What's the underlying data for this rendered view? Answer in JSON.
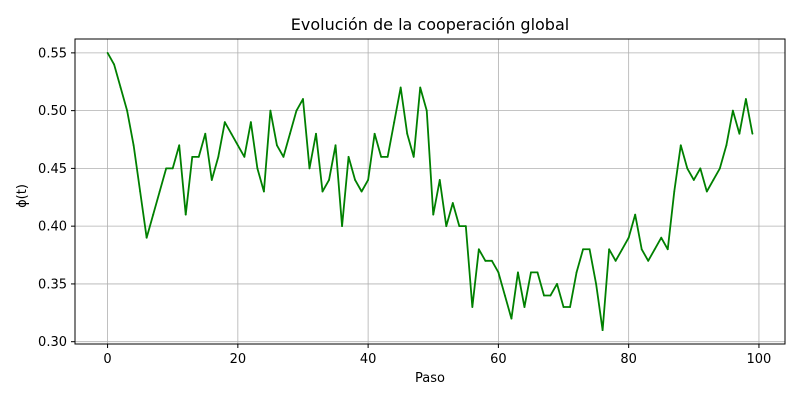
{
  "chart_data": {
    "type": "line",
    "title": "Evolución de la cooperación global",
    "xlabel": "Paso",
    "ylabel": "ϕ(t)",
    "xlim": [
      -5,
      104
    ],
    "ylim": [
      0.298,
      0.562
    ],
    "grid": true,
    "line_color": "#008000",
    "xticks": [
      0,
      20,
      40,
      60,
      80,
      100
    ],
    "xtick_labels": [
      "0",
      "20",
      "40",
      "60",
      "80",
      "100"
    ],
    "yticks": [
      0.3,
      0.35,
      0.4,
      0.45,
      0.5,
      0.55
    ],
    "ytick_labels": [
      "0.30",
      "0.35",
      "0.40",
      "0.45",
      "0.50",
      "0.55"
    ],
    "series": [
      {
        "x": [
          0,
          1,
          2,
          3,
          4,
          5,
          6,
          7,
          8,
          9,
          10,
          11,
          12,
          13,
          14,
          15,
          16,
          17,
          18,
          19,
          20,
          21,
          22,
          23,
          24,
          25,
          26,
          27,
          28,
          29,
          30,
          31,
          32,
          33,
          34,
          35,
          36,
          37,
          38,
          39,
          40,
          41,
          42,
          43,
          44,
          45,
          46,
          47,
          48,
          49,
          50,
          51,
          52,
          53,
          54,
          55,
          56,
          57,
          58,
          59,
          60,
          61,
          62,
          63,
          64,
          65,
          66,
          67,
          68,
          69,
          70,
          71,
          72,
          73,
          74,
          75,
          76,
          77,
          78,
          79,
          80,
          81,
          82,
          83,
          84,
          85,
          86,
          87,
          88,
          89,
          90,
          91,
          92,
          93,
          94,
          95,
          96,
          97,
          98,
          99
        ],
        "values": [
          0.55,
          0.54,
          0.52,
          0.5,
          0.47,
          0.43,
          0.39,
          0.41,
          0.43,
          0.45,
          0.45,
          0.47,
          0.41,
          0.46,
          0.46,
          0.48,
          0.44,
          0.46,
          0.49,
          0.48,
          0.47,
          0.46,
          0.49,
          0.45,
          0.43,
          0.5,
          0.47,
          0.46,
          0.48,
          0.5,
          0.51,
          0.45,
          0.48,
          0.43,
          0.44,
          0.47,
          0.4,
          0.46,
          0.44,
          0.43,
          0.44,
          0.48,
          0.46,
          0.46,
          0.49,
          0.52,
          0.48,
          0.46,
          0.52,
          0.5,
          0.41,
          0.44,
          0.4,
          0.42,
          0.4,
          0.4,
          0.33,
          0.38,
          0.37,
          0.37,
          0.36,
          0.34,
          0.32,
          0.36,
          0.33,
          0.36,
          0.36,
          0.34,
          0.34,
          0.35,
          0.33,
          0.33,
          0.36,
          0.38,
          0.38,
          0.35,
          0.31,
          0.38,
          0.37,
          0.38,
          0.39,
          0.41,
          0.38,
          0.37,
          0.38,
          0.39,
          0.38,
          0.43,
          0.47,
          0.45,
          0.44,
          0.45,
          0.43,
          0.44,
          0.45,
          0.47,
          0.5,
          0.48,
          0.51,
          0.48
        ]
      }
    ]
  }
}
